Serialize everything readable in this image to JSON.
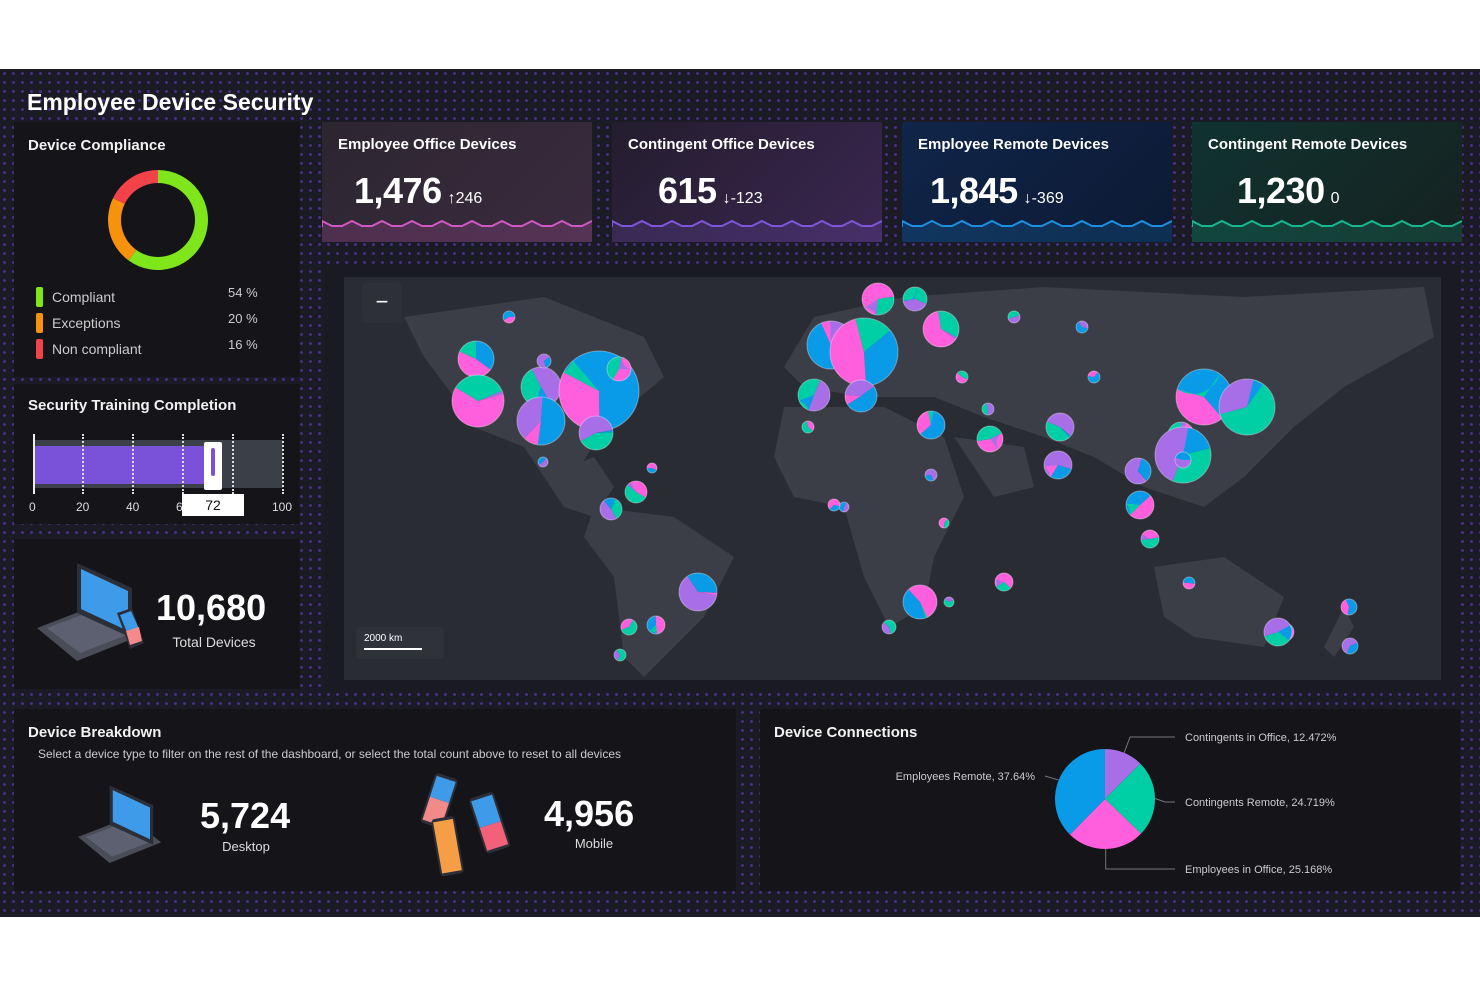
{
  "title": "Employee Device Security",
  "compliance": {
    "title": "Device Compliance",
    "items": [
      {
        "label": "Compliant",
        "value": "54 %",
        "pct": 54,
        "color": "#7ee61b"
      },
      {
        "label": "Exceptions",
        "value": "20 %",
        "pct": 20,
        "color": "#f7920f"
      },
      {
        "label": "Non compliant",
        "value": "16 %",
        "pct": 16,
        "color": "#f2424a"
      }
    ]
  },
  "training": {
    "title": "Security Training Completion",
    "value": 72,
    "value_label": "72",
    "ticks": [
      "0",
      "20",
      "40",
      "60",
      "80",
      "100"
    ],
    "color": "#7a52d9"
  },
  "kpis": [
    {
      "title": "Employee Office Devices",
      "value": "1,476",
      "delta": "↑246",
      "color": "#d058c4"
    },
    {
      "title": "Contingent Office Devices",
      "value": "615",
      "delta": "↓-123",
      "color": "#7f56d9"
    },
    {
      "title": "Employee Remote Devices",
      "value": "1,845",
      "delta": "↓-369",
      "color": "#1e8fe0"
    },
    {
      "title": "Contingent Remote Devices",
      "value": "1,230",
      "delta": "0",
      "color": "#17b890"
    }
  ],
  "total": {
    "value": "10,680",
    "label": "Total Devices"
  },
  "map": {
    "zoom_out": "−",
    "scale": "2000 km"
  },
  "breakdown": {
    "title": "Device Breakdown",
    "hint": "Select a device type to filter on the rest of the dashboard, or select the total count above to reset to all devices",
    "desktop": {
      "value": "5,724",
      "label": "Desktop"
    },
    "mobile": {
      "value": "4,956",
      "label": "Mobile"
    }
  },
  "chart_data": {
    "type": "pie",
    "title": "Device Connections",
    "slices": [
      {
        "name": "Contingents in Office",
        "value": 12.472,
        "label": "Contingents in Office, 12.472%",
        "color": "#a86ee8"
      },
      {
        "name": "Contingents Remote",
        "value": 24.719,
        "label": "Contingents Remote, 24.719%",
        "color": "#00cfa6"
      },
      {
        "name": "Employees in Office",
        "value": 25.168,
        "label": "Employees in Office, 25.168%",
        "color": "#ff5fdc"
      },
      {
        "name": "Employees Remote",
        "value": 37.64,
        "label": "Employees Remote, 37.64%",
        "color": "#0a9be8"
      }
    ]
  }
}
